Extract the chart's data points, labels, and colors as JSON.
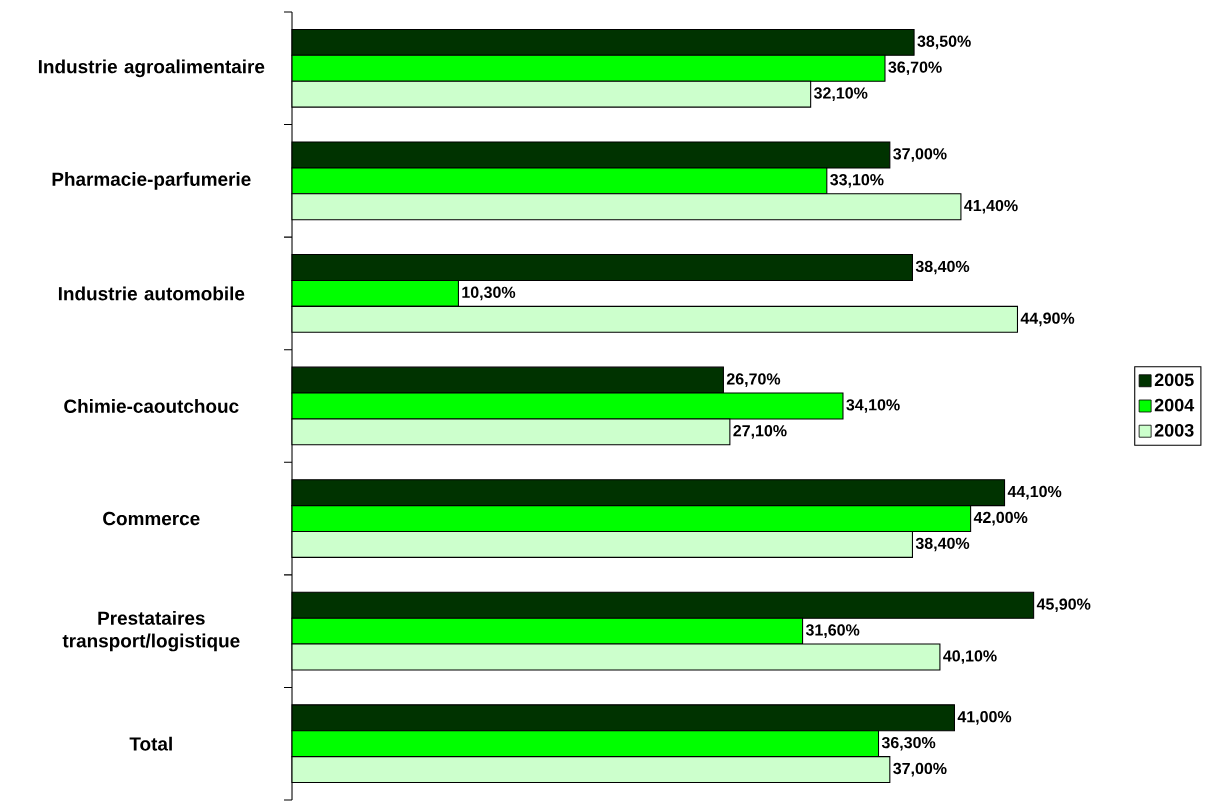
{
  "chart_data": {
    "type": "bar",
    "orientation": "horizontal",
    "legend": "right",
    "categories": [
      "Industrie agroalimentaire",
      "Pharmacie-parfumerie",
      "Industrie automobile",
      "Chimie-caoutchouc",
      "Commerce",
      "Prestataires transport/logistique",
      "Total"
    ],
    "series": [
      {
        "name": "2005",
        "color": "#003300",
        "values": [
          38.5,
          37.0,
          38.4,
          26.7,
          44.1,
          45.9,
          41.0
        ],
        "value_labels": [
          "38,50%",
          "37,00%",
          "38,40%",
          "26,70%",
          "44,10%",
          "45,90%",
          "41,00%"
        ]
      },
      {
        "name": "2004",
        "color": "#00ff00",
        "values": [
          36.7,
          33.1,
          10.3,
          34.1,
          42.0,
          31.6,
          36.3
        ],
        "value_labels": [
          "36,70%",
          "33,10%",
          "10,30%",
          "34,10%",
          "42,00%",
          "31,60%",
          "36,30%"
        ]
      },
      {
        "name": "2003",
        "color": "#ccffcc",
        "values": [
          32.1,
          41.4,
          44.9,
          27.1,
          38.4,
          40.1,
          37.0
        ],
        "value_labels": [
          "32,10%",
          "41,40%",
          "44,90%",
          "27,10%",
          "38,40%",
          "40,10%",
          "37,00%"
        ]
      }
    ]
  }
}
